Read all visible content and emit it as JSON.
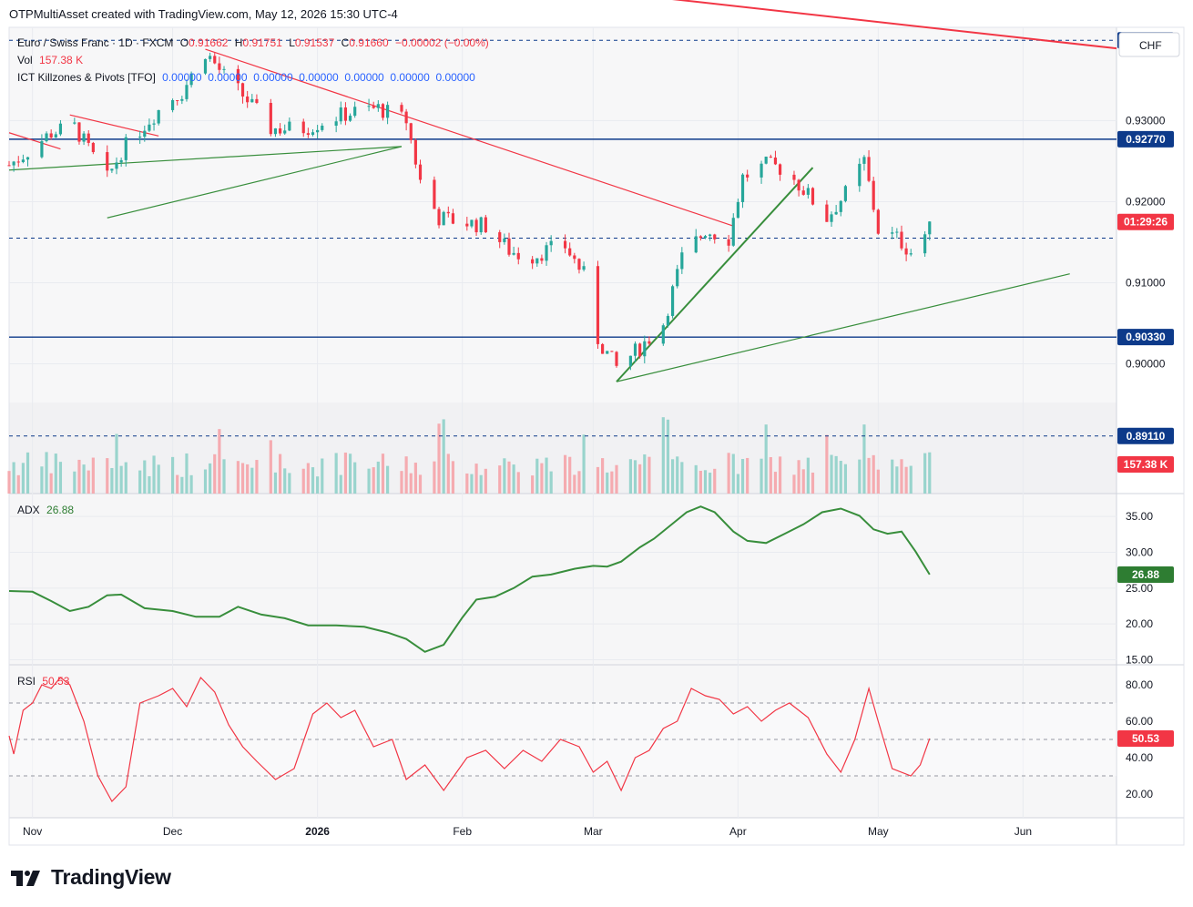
{
  "header": {
    "attribution": "OTPMultiAsset created with TradingView.com, May 12, 2026 15:30 UTC-4"
  },
  "legend": {
    "symbol": "Euro / Swiss Franc · 1D · FXCM",
    "o_label": "O",
    "o_value": "0.91662",
    "h_label": "H",
    "h_value": "0.91751",
    "l_label": "L",
    "l_value": "0.91537",
    "c_label": "C",
    "c_value": "0.91660",
    "change": "−0.00002 (−0.00%)",
    "vol_label": "Vol",
    "vol_value": "157.38 K",
    "ict_label": "ICT Killzones & Pivots [TFO]",
    "ict_values": "0.00000  0.00000  0.00000  0.00000  0.00000  0.00000  0.00000",
    "adx_label": "ADX",
    "adx_value": "26.88",
    "rsi_label": "RSI",
    "rsi_value": "50.53"
  },
  "currency_button": "CHF",
  "colors": {
    "up": "#26a69a",
    "down": "#f23645",
    "blue_level": "#0d3a8a",
    "trend_green": "#388e3c",
    "trend_red": "#f23645"
  },
  "price_levels": [
    {
      "value": 0.9399,
      "label": "0.93990",
      "style": "dashed"
    },
    {
      "value": 0.9277,
      "label": "0.92770",
      "style": "solid"
    },
    {
      "value": 0.9033,
      "label": "0.90330",
      "style": "solid"
    },
    {
      "value": 0.8911,
      "label": "0.89110",
      "style": "dashed"
    },
    {
      "value": 0.9155,
      "label": "0.91553",
      "style": "dashed"
    }
  ],
  "countdown": "01:29:26",
  "volume_tag": "157.38 K",
  "adx_tag": "26.88",
  "rsi_tag": "50.53",
  "footer": {
    "brand": "TradingView"
  },
  "chart_data": [
    {
      "type": "candlestick",
      "title": "Euro / Swiss Franc · 1D · FXCM",
      "y_ticks": [
        "0.93000",
        "0.92000",
        "0.91000",
        "0.90000"
      ],
      "y_tick_values": [
        0.93,
        0.92,
        0.91,
        0.9
      ],
      "ylim": [
        0.884,
        0.9415
      ],
      "x_ticks": [
        "Nov",
        "Dec",
        "2026",
        "Feb",
        "Mar",
        "Apr",
        "May",
        "Jun"
      ],
      "x_tick_dates": [
        "2025-11-01",
        "2025-12-01",
        "2026-01-01",
        "2026-02-01",
        "2026-03-01",
        "2026-04-01",
        "2026-05-01",
        "2026-06-01"
      ],
      "xlim": [
        "2025-10-27",
        "2026-06-21"
      ],
      "close_path": [
        [
          "2025-10-27",
          0.9245
        ],
        [
          "2025-10-31",
          0.9262
        ],
        [
          "2025-11-05",
          0.9285
        ],
        [
          "2025-11-10",
          0.9292
        ],
        [
          "2025-11-13",
          0.9265
        ],
        [
          "2025-11-17",
          0.9228
        ],
        [
          "2025-11-20",
          0.9262
        ],
        [
          "2025-11-25",
          0.9295
        ],
        [
          "2025-11-30",
          0.9325
        ],
        [
          "2025-12-03",
          0.9335
        ],
        [
          "2025-12-08",
          0.9385
        ],
        [
          "2025-12-12",
          0.9355
        ],
        [
          "2025-12-17",
          0.9325
        ],
        [
          "2025-12-22",
          0.929
        ],
        [
          "2025-12-29",
          0.929
        ],
        [
          "2026-01-05",
          0.9305
        ],
        [
          "2026-01-10",
          0.9312
        ],
        [
          "2026-01-14",
          0.9315
        ],
        [
          "2026-01-20",
          0.93
        ],
        [
          "2026-01-23",
          0.9225
        ],
        [
          "2026-01-27",
          0.918
        ],
        [
          "2026-02-01",
          0.9175
        ],
        [
          "2026-02-06",
          0.917
        ],
        [
          "2026-02-11",
          0.914
        ],
        [
          "2026-02-15",
          0.913
        ],
        [
          "2026-02-19",
          0.914
        ],
        [
          "2026-02-23",
          0.9145
        ],
        [
          "2026-02-27",
          0.911
        ],
        [
          "2026-03-02",
          0.903
        ],
        [
          "2026-03-06",
          0.8995
        ],
        [
          "2026-03-11",
          0.902
        ],
        [
          "2026-03-16",
          0.905
        ],
        [
          "2026-03-20",
          0.913
        ],
        [
          "2026-03-25",
          0.9165
        ],
        [
          "2026-03-30",
          0.9155
        ],
        [
          "2026-04-02",
          0.923
        ],
        [
          "2026-04-07",
          0.9245
        ],
        [
          "2026-04-11",
          0.924
        ],
        [
          "2026-04-15",
          0.9215
        ],
        [
          "2026-04-20",
          0.918
        ],
        [
          "2026-04-24",
          0.921
        ],
        [
          "2026-04-28",
          0.925
        ],
        [
          "2026-05-01",
          0.9165
        ],
        [
          "2026-05-05",
          0.9155
        ],
        [
          "2026-05-08",
          0.9138
        ],
        [
          "2026-05-11",
          0.916
        ],
        [
          "2026-05-12",
          0.9166
        ]
      ],
      "drawings": [
        {
          "name": "red-downtrend-long",
          "color": "#f23645",
          "from": [
            "2025-10-20",
            0.9545
          ],
          "to": [
            "2026-06-21",
            0.9389
          ]
        },
        {
          "name": "red-downtrend-mid",
          "color": "#f23645",
          "from": [
            "2025-12-08",
            0.9388
          ],
          "to": [
            "2026-03-31",
            0.917
          ]
        },
        {
          "name": "red-short-1",
          "color": "#f23645",
          "from": [
            "2025-11-09",
            0.9307
          ],
          "to": [
            "2025-11-28",
            0.9281
          ]
        },
        {
          "name": "red-short-2",
          "color": "#f23645",
          "from": [
            "2025-10-27",
            0.9285
          ],
          "to": [
            "2025-11-07",
            0.9265
          ]
        },
        {
          "name": "green-uptrend-1",
          "color": "#388e3c",
          "from": [
            "2025-10-27",
            0.9239
          ],
          "to": [
            "2026-01-19",
            0.9268
          ]
        },
        {
          "name": "green-uptrend-2",
          "color": "#388e3c",
          "from": [
            "2025-11-17",
            0.918
          ],
          "to": [
            "2026-01-19",
            0.9268
          ]
        },
        {
          "name": "green-uptrend-3",
          "color": "#388e3c",
          "from": [
            "2026-03-06",
            0.8978
          ],
          "to": [
            "2026-06-11",
            0.9111
          ]
        },
        {
          "name": "green-uptrend-4",
          "color": "#388e3c",
          "from": [
            "2026-03-06",
            0.8978
          ],
          "to": [
            "2026-04-17",
            0.9242
          ]
        }
      ]
    },
    {
      "type": "bar",
      "title": "Vol",
      "series": "volume",
      "last_value": "157.38 K",
      "note": "volume bars in lower portion of main pane; teal = up day, pink = down day"
    },
    {
      "type": "line",
      "title": "ADX",
      "y_ticks": [
        "35.00",
        "30.00",
        "25.00",
        "20.00",
        "15.00"
      ],
      "y_tick_values": [
        35,
        30,
        25,
        20,
        15
      ],
      "ylim": [
        14.3,
        38.2
      ],
      "points": [
        [
          "2025-10-27",
          24.6
        ],
        [
          "2025-11-01",
          24.5
        ],
        [
          "2025-11-05",
          23.2
        ],
        [
          "2025-11-09",
          21.8
        ],
        [
          "2025-11-13",
          22.4
        ],
        [
          "2025-11-17",
          24.0
        ],
        [
          "2025-11-20",
          24.1
        ],
        [
          "2025-11-25",
          22.2
        ],
        [
          "2025-12-01",
          21.8
        ],
        [
          "2025-12-06",
          21.0
        ],
        [
          "2025-12-11",
          21.0
        ],
        [
          "2025-12-15",
          22.4
        ],
        [
          "2025-12-20",
          21.3
        ],
        [
          "2025-12-25",
          20.8
        ],
        [
          "2025-12-30",
          19.8
        ],
        [
          "2026-01-05",
          19.8
        ],
        [
          "2026-01-11",
          19.6
        ],
        [
          "2026-01-16",
          18.8
        ],
        [
          "2026-01-20",
          17.9
        ],
        [
          "2026-01-24",
          16.1
        ],
        [
          "2026-01-28",
          17.1
        ],
        [
          "2026-02-01",
          20.9
        ],
        [
          "2026-02-04",
          23.4
        ],
        [
          "2026-02-08",
          23.8
        ],
        [
          "2026-02-12",
          25.0
        ],
        [
          "2026-02-16",
          26.6
        ],
        [
          "2026-02-20",
          26.9
        ],
        [
          "2026-02-25",
          27.7
        ],
        [
          "2026-03-01",
          28.1
        ],
        [
          "2026-03-04",
          28.0
        ],
        [
          "2026-03-07",
          28.7
        ],
        [
          "2026-03-11",
          30.7
        ],
        [
          "2026-03-14",
          31.9
        ],
        [
          "2026-03-18",
          34.0
        ],
        [
          "2026-03-21",
          35.6
        ],
        [
          "2026-03-24",
          36.4
        ],
        [
          "2026-03-27",
          35.6
        ],
        [
          "2026-03-31",
          32.9
        ],
        [
          "2026-04-03",
          31.6
        ],
        [
          "2026-04-07",
          31.3
        ],
        [
          "2026-04-11",
          32.6
        ],
        [
          "2026-04-15",
          33.9
        ],
        [
          "2026-04-19",
          35.6
        ],
        [
          "2026-04-23",
          36.1
        ],
        [
          "2026-04-27",
          35.1
        ],
        [
          "2026-04-30",
          33.2
        ],
        [
          "2026-05-03",
          32.6
        ],
        [
          "2026-05-06",
          32.9
        ],
        [
          "2026-05-09",
          30.1
        ],
        [
          "2026-05-12",
          26.9
        ]
      ]
    },
    {
      "type": "line",
      "title": "RSI",
      "y_ticks": [
        "80.00",
        "60.00",
        "40.00",
        "20.00"
      ],
      "y_tick_values": [
        80,
        60,
        40,
        20
      ],
      "ylim": [
        7,
        91
      ],
      "bands": [
        70,
        50,
        30
      ],
      "points": [
        [
          "2025-10-27",
          52
        ],
        [
          "2025-10-28",
          42
        ],
        [
          "2025-10-30",
          66
        ],
        [
          "2025-11-01",
          70
        ],
        [
          "2025-11-03",
          80
        ],
        [
          "2025-11-05",
          78
        ],
        [
          "2025-11-07",
          84
        ],
        [
          "2025-11-09",
          80
        ],
        [
          "2025-11-12",
          60
        ],
        [
          "2025-11-15",
          30
        ],
        [
          "2025-11-18",
          16
        ],
        [
          "2025-11-21",
          24
        ],
        [
          "2025-11-24",
          70
        ],
        [
          "2025-11-28",
          74
        ],
        [
          "2025-12-01",
          78
        ],
        [
          "2025-12-04",
          68
        ],
        [
          "2025-12-07",
          84
        ],
        [
          "2025-12-10",
          76
        ],
        [
          "2025-12-13",
          58
        ],
        [
          "2025-12-16",
          46
        ],
        [
          "2025-12-19",
          38
        ],
        [
          "2025-12-23",
          28
        ],
        [
          "2025-12-27",
          34
        ],
        [
          "2025-12-31",
          64
        ],
        [
          "2026-01-03",
          70
        ],
        [
          "2026-01-06",
          62
        ],
        [
          "2026-01-09",
          66
        ],
        [
          "2026-01-13",
          46
        ],
        [
          "2026-01-17",
          50
        ],
        [
          "2026-01-20",
          28
        ],
        [
          "2026-01-24",
          36
        ],
        [
          "2026-01-28",
          22
        ],
        [
          "2026-02-02",
          40
        ],
        [
          "2026-02-06",
          44
        ],
        [
          "2026-02-10",
          34
        ],
        [
          "2026-02-14",
          44
        ],
        [
          "2026-02-18",
          38
        ],
        [
          "2026-02-22",
          50
        ],
        [
          "2026-02-26",
          46
        ],
        [
          "2026-03-01",
          32
        ],
        [
          "2026-03-04",
          38
        ],
        [
          "2026-03-07",
          22
        ],
        [
          "2026-03-10",
          40
        ],
        [
          "2026-03-13",
          44
        ],
        [
          "2026-03-16",
          56
        ],
        [
          "2026-03-19",
          60
        ],
        [
          "2026-03-22",
          78
        ],
        [
          "2026-03-25",
          74
        ],
        [
          "2026-03-28",
          72
        ],
        [
          "2026-03-31",
          64
        ],
        [
          "2026-04-03",
          68
        ],
        [
          "2026-04-06",
          60
        ],
        [
          "2026-04-09",
          66
        ],
        [
          "2026-04-12",
          70
        ],
        [
          "2026-04-16",
          62
        ],
        [
          "2026-04-20",
          42
        ],
        [
          "2026-04-23",
          32
        ],
        [
          "2026-04-26",
          50
        ],
        [
          "2026-04-29",
          78
        ],
        [
          "2026-05-01",
          60
        ],
        [
          "2026-05-04",
          34
        ],
        [
          "2026-05-08",
          30
        ],
        [
          "2026-05-10",
          36
        ],
        [
          "2026-05-12",
          50.5
        ]
      ]
    }
  ]
}
